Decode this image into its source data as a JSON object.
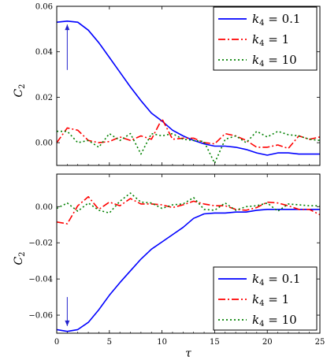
{
  "chart_data": [
    {
      "type": "line",
      "panel": "top",
      "ylabel": "C2",
      "xlabel": "",
      "xlim": [
        0,
        25
      ],
      "ylim": [
        -0.01,
        0.06
      ],
      "xticks": [
        0,
        5,
        10,
        15,
        20,
        25
      ],
      "yticks": [
        0.0,
        0.02,
        0.04,
        0.06
      ],
      "ytick_labels": [
        "0.00",
        "0.02",
        "0.04",
        "0.06"
      ],
      "legend_position": "top-right",
      "annotation": {
        "type": "arrow",
        "direction": "up",
        "x": 1,
        "y_from": 0.032,
        "y_to": 0.052,
        "color": "#2222cc"
      },
      "series": [
        {
          "name": "k4 = 0.1",
          "name_prefix": "k",
          "name_sub": "4",
          "name_suffix": " = 0.1",
          "color": "#0000ff",
          "dash": "solid",
          "x": [
            0,
            1,
            2,
            3,
            4,
            5,
            6,
            7,
            8,
            9,
            10,
            11,
            12,
            13,
            14,
            15,
            16,
            17,
            18,
            19,
            20,
            21,
            22,
            23,
            24,
            25
          ],
          "y": [
            0.053,
            0.0535,
            0.053,
            0.0495,
            0.044,
            0.0375,
            0.031,
            0.0245,
            0.0185,
            0.013,
            0.0095,
            0.0055,
            0.003,
            0.001,
            -0.0005,
            -0.0015,
            -0.0015,
            -0.002,
            -0.003,
            -0.0045,
            -0.0055,
            -0.0045,
            -0.0045,
            -0.005,
            -0.005,
            -0.005
          ]
        },
        {
          "name": "k4 = 1",
          "name_prefix": "k",
          "name_sub": "4",
          "name_suffix": " = 1",
          "color": "#ff0000",
          "dash": "dashdot",
          "x": [
            0,
            1,
            2,
            3,
            4,
            5,
            6,
            7,
            8,
            9,
            10,
            11,
            12,
            13,
            14,
            15,
            16,
            17,
            18,
            19,
            20,
            21,
            22,
            23,
            24,
            25
          ],
          "y": [
            0.0,
            0.0065,
            0.0055,
            0.001,
            0.0,
            0.0005,
            0.0025,
            0.001,
            0.003,
            0.0015,
            0.0105,
            0.0015,
            0.002,
            0.002,
            0.0,
            -0.0005,
            0.004,
            0.003,
            0.001,
            -0.002,
            -0.002,
            -0.001,
            -0.0025,
            0.003,
            0.0015,
            0.0025
          ]
        },
        {
          "name": "k4 = 10",
          "name_prefix": "k",
          "name_sub": "4",
          "name_suffix": " = 10",
          "color": "#008000",
          "dash": "dotted",
          "x": [
            0,
            1,
            2,
            3,
            4,
            5,
            6,
            7,
            8,
            9,
            10,
            11,
            12,
            13,
            14,
            15,
            16,
            17,
            18,
            19,
            20,
            21,
            22,
            23,
            24,
            25
          ],
          "y": [
            0.005,
            0.005,
            0.0,
            0.001,
            -0.002,
            0.004,
            0.001,
            0.004,
            -0.005,
            0.004,
            0.003,
            0.004,
            0.0015,
            0.001,
            0.0005,
            -0.009,
            0.0015,
            0.003,
            0.0,
            0.005,
            0.0025,
            0.005,
            0.0035,
            0.003,
            0.0015,
            0.001
          ]
        }
      ]
    },
    {
      "type": "line",
      "panel": "bottom",
      "ylabel": "C2",
      "xlabel": "τ",
      "xlim": [
        0,
        25
      ],
      "ylim": [
        -0.07,
        0.018
      ],
      "xticks": [
        0,
        5,
        10,
        15,
        20,
        25
      ],
      "yticks": [
        -0.06,
        -0.04,
        -0.02,
        0.0
      ],
      "ytick_labels": [
        "−0.06",
        "−0.04",
        "−0.02",
        "0.00"
      ],
      "legend_position": "bottom-right",
      "annotation": {
        "type": "arrow",
        "direction": "down",
        "x": 1,
        "y_from": -0.05,
        "y_to": -0.066,
        "color": "#2222cc"
      },
      "series": [
        {
          "name": "k4 = 0.1",
          "name_prefix": "k",
          "name_sub": "4",
          "name_suffix": " = 0.1",
          "color": "#0000ff",
          "dash": "solid",
          "x": [
            0,
            1,
            2,
            3,
            4,
            5,
            6,
            7,
            8,
            9,
            10,
            11,
            12,
            13,
            14,
            15,
            16,
            17,
            18,
            19,
            20,
            21,
            22,
            23,
            24,
            25
          ],
          "y": [
            -0.068,
            -0.069,
            -0.068,
            -0.064,
            -0.057,
            -0.049,
            -0.042,
            -0.0355,
            -0.029,
            -0.0235,
            -0.0195,
            -0.0155,
            -0.0115,
            -0.0065,
            -0.004,
            -0.0035,
            -0.0035,
            -0.003,
            -0.003,
            -0.002,
            -0.0015,
            -0.0015,
            -0.0015,
            -0.0015,
            -0.0015,
            -0.0015
          ]
        },
        {
          "name": "k4 = 1",
          "name_prefix": "k",
          "name_sub": "4",
          "name_suffix": " = 1",
          "color": "#ff0000",
          "dash": "dashdot",
          "x": [
            0,
            1,
            2,
            3,
            4,
            5,
            6,
            7,
            8,
            9,
            10,
            11,
            12,
            13,
            14,
            15,
            16,
            17,
            18,
            19,
            20,
            21,
            22,
            23,
            24,
            25
          ],
          "y": [
            -0.0085,
            -0.0095,
            0.0005,
            0.0055,
            -0.0015,
            0.0025,
            0.0005,
            0.0045,
            0.0015,
            0.0015,
            0.001,
            -0.0005,
            0.001,
            0.003,
            0.0015,
            0.0005,
            0.0005,
            -0.0015,
            -0.002,
            -0.0005,
            0.0025,
            0.002,
            0.0005,
            -0.0015,
            -0.0015,
            -0.0045
          ]
        },
        {
          "name": "k4 = 10",
          "name_prefix": "k",
          "name_sub": "4",
          "name_suffix": " = 10",
          "color": "#008000",
          "dash": "dotted",
          "x": [
            0,
            1,
            2,
            3,
            4,
            5,
            6,
            7,
            8,
            9,
            10,
            11,
            12,
            13,
            14,
            15,
            16,
            17,
            18,
            19,
            20,
            21,
            22,
            23,
            24,
            25
          ],
          "y": [
            -0.001,
            0.002,
            -0.0025,
            0.002,
            -0.002,
            -0.0035,
            0.003,
            0.0075,
            0.0025,
            0.002,
            -0.001,
            0.001,
            0.0015,
            0.005,
            -0.0015,
            -0.002,
            0.002,
            -0.002,
            0.0,
            0.0005,
            0.002,
            -0.0025,
            0.0015,
            0.001,
            0.0005,
            0.0005
          ]
        }
      ]
    }
  ]
}
